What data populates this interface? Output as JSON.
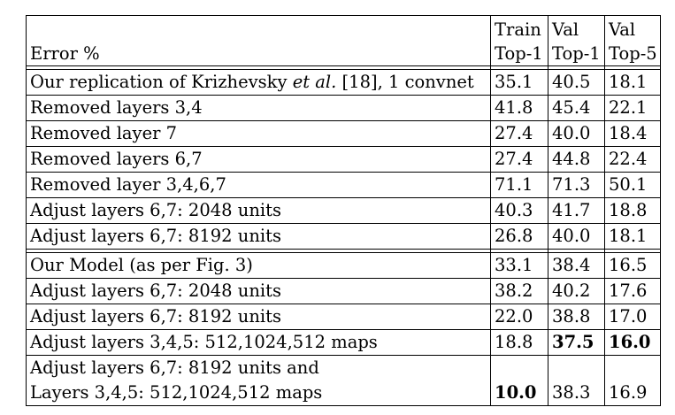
{
  "table": {
    "header": {
      "label": "Error %",
      "cols": [
        {
          "l1": "Train",
          "l2": "Top-1"
        },
        {
          "l1": "Val",
          "l2": "Top-1"
        },
        {
          "l1": "Val",
          "l2": "Top-5"
        }
      ]
    },
    "group1": [
      {
        "label_pre": "Our replication of Krizhevsky ",
        "label_em": "et al.",
        "label_post": " [18], 1 convnet",
        "v": [
          "35.1",
          "40.5",
          "18.1"
        ]
      },
      {
        "label": "Removed layers 3,4",
        "v": [
          "41.8",
          "45.4",
          "22.1"
        ]
      },
      {
        "label": "Removed layer 7",
        "v": [
          "27.4",
          "40.0",
          "18.4"
        ]
      },
      {
        "label": "Removed layers 6,7",
        "v": [
          "27.4",
          "44.8",
          "22.4"
        ]
      },
      {
        "label": "Removed layer 3,4,6,7",
        "v": [
          "71.1",
          "71.3",
          "50.1"
        ]
      },
      {
        "label": "Adjust layers 6,7: 2048 units",
        "v": [
          "40.3",
          "41.7",
          "18.8"
        ]
      },
      {
        "label": "Adjust layers 6,7: 8192 units",
        "v": [
          "26.8",
          "40.0",
          "18.1"
        ]
      }
    ],
    "group2": [
      {
        "label": "Our Model (as per Fig. 3)",
        "v": [
          "33.1",
          "38.4",
          "16.5"
        ]
      },
      {
        "label": "Adjust layers 6,7: 2048 units",
        "v": [
          "38.2",
          "40.2",
          "17.6"
        ]
      },
      {
        "label": "Adjust layers 6,7: 8192 units",
        "v": [
          "22.0",
          "38.8",
          "17.0"
        ]
      },
      {
        "label": "Adjust layers 3,4,5: 512,1024,512 maps",
        "v": [
          "18.8",
          "37.5",
          "16.0"
        ]
      },
      {
        "label_l1": "Adjust layers 6,7: 8192 units and",
        "label_l2": "Layers 3,4,5: 512,1024,512 maps",
        "v": [
          "10.0",
          "38.3",
          "16.9"
        ]
      }
    ]
  }
}
